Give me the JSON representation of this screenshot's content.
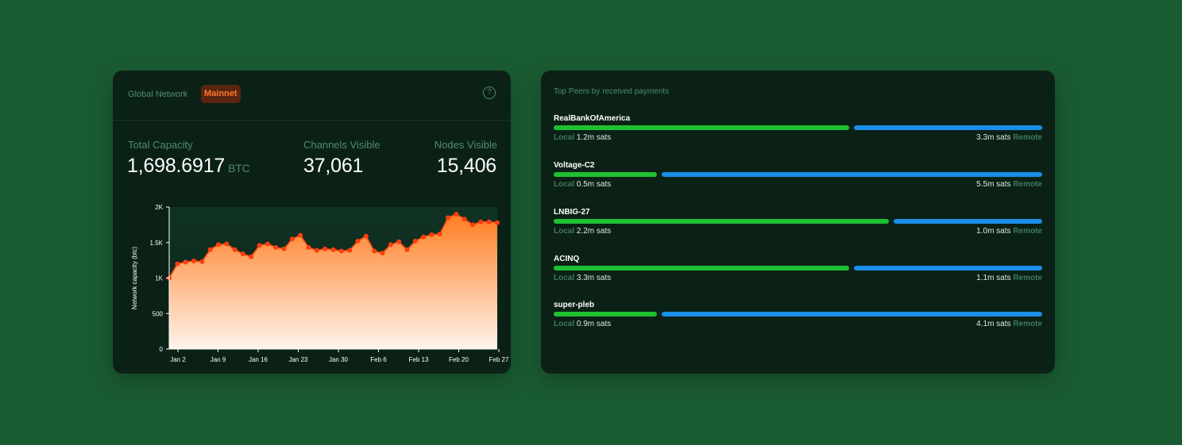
{
  "network": {
    "title": "Global Network",
    "badge": "Mainnet",
    "help_symbol": "?",
    "stats": [
      {
        "label": "Total Capacity",
        "value": "1,698.6917",
        "unit": "BTC"
      },
      {
        "label": "Channels Visible",
        "value": "37,061"
      },
      {
        "label": "Nodes Visible",
        "value": "15,406"
      }
    ]
  },
  "colors": {
    "background": "#1a5c32",
    "card": "#0b2116",
    "accent_orange": "#ff6b1a",
    "badge_bg": "#5a2510",
    "local_bar": "#1fc133",
    "remote_bar": "#1a8ee8",
    "muted_green": "#4f8d6a"
  },
  "chart_data": {
    "type": "area",
    "ylabel": "Network capacity (btc)",
    "xlabel": "",
    "ylim": [
      0,
      2000
    ],
    "yticks": [
      0,
      500,
      1000,
      1500,
      2000
    ],
    "ytick_labels": [
      "0",
      "500",
      "1K",
      "1.5K",
      "2K"
    ],
    "xticks": [
      "Jan 2",
      "Jan 9",
      "Jan 16",
      "Jan 23",
      "Jan 30",
      "Feb 6",
      "Feb 13",
      "Feb 20",
      "Feb 27"
    ],
    "x_start": "Jan 1",
    "x_end": "Feb 28",
    "series": [
      {
        "values": [
          1000,
          1200,
          1225,
          1240,
          1230,
          1400,
          1470,
          1480,
          1400,
          1340,
          1300,
          1460,
          1480,
          1430,
          1410,
          1550,
          1600,
          1430,
          1390,
          1410,
          1400,
          1380,
          1390,
          1520,
          1590,
          1380,
          1350,
          1470,
          1510,
          1400,
          1520,
          1580,
          1610,
          1620,
          1850,
          1900,
          1830,
          1750,
          1790,
          1790,
          1780
        ]
      }
    ],
    "grid": false
  },
  "peers": {
    "title": "Top Peers by received payments",
    "local_label": "Local",
    "remote_label": "Remote",
    "items": [
      {
        "name": "RealBankOfAmerica",
        "local": "1.2m sats",
        "remote": "3.3m sats",
        "local_fraction": 0.605
      },
      {
        "name": "Voltage-C2",
        "local": "0.5m sats",
        "remote": "5.5m sats",
        "local_fraction": 0.212
      },
      {
        "name": "LNBIG-27",
        "local": "2.2m sats",
        "remote": "1.0m sats",
        "local_fraction": 0.686
      },
      {
        "name": "ACINQ",
        "local": "3.3m sats",
        "remote": "1.1m sats",
        "local_fraction": 0.605
      },
      {
        "name": "super-pleb",
        "local": "0.9m sats",
        "remote": "4.1m sats",
        "local_fraction": 0.212
      }
    ]
  }
}
